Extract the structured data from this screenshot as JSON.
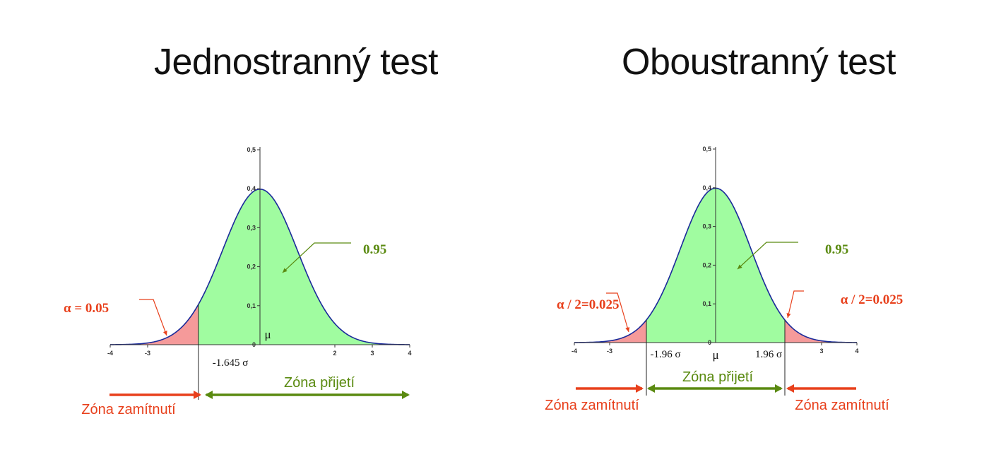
{
  "colors": {
    "rejection_fill": "#f59a9a",
    "acceptance_fill": "#a0fca0",
    "curve": "#1a2a9a",
    "rejection_text": "#e8401c",
    "acceptance_text": "#5a8a10",
    "axis": "#333333"
  },
  "chart_data": [
    {
      "type": "area",
      "title": "Jednostranný test",
      "distribution": "standard normal density",
      "xlim": [
        -4,
        4
      ],
      "ylim": [
        0,
        0.5
      ],
      "x_ticks": [
        -4,
        -3,
        2,
        3,
        4
      ],
      "y_ticks": [
        0,
        0.1,
        0.2,
        0.3,
        0.4,
        0.5
      ],
      "y_tick_labels": [
        "0",
        "0,1",
        "0,2",
        "0,3",
        "0,4",
        "0,5"
      ],
      "critical_values": [
        -1.645
      ],
      "regions": [
        {
          "from": -4,
          "to": -1.645,
          "kind": "rejection"
        },
        {
          "from": -1.645,
          "to": 4,
          "kind": "acceptance"
        }
      ],
      "labels": {
        "mu": "μ",
        "critical_left": "-1.645 σ",
        "area_acceptance": "0.95",
        "area_rejection_left": "α = 0.05",
        "zone_accept": "Zóna přijetí",
        "zone_reject_left": "Zóna zamítnutí"
      }
    },
    {
      "type": "area",
      "title": "Oboustranný test",
      "distribution": "standard normal density",
      "xlim": [
        -4,
        4
      ],
      "ylim": [
        0,
        0.5
      ],
      "x_ticks": [
        -4,
        -3,
        3,
        4
      ],
      "y_ticks": [
        0,
        0.1,
        0.2,
        0.3,
        0.4,
        0.5
      ],
      "y_tick_labels": [
        "0",
        "0,1",
        "0,2",
        "0,3",
        "0,4",
        "0,5"
      ],
      "critical_values": [
        -1.96,
        1.96
      ],
      "regions": [
        {
          "from": -4,
          "to": -1.96,
          "kind": "rejection"
        },
        {
          "from": -1.96,
          "to": 1.96,
          "kind": "acceptance"
        },
        {
          "from": 1.96,
          "to": 4,
          "kind": "rejection"
        }
      ],
      "labels": {
        "mu": "μ",
        "critical_left": "-1.96 σ",
        "critical_right": "1.96 σ",
        "area_acceptance": "0.95",
        "area_rejection_left": "α / 2=0.025",
        "area_rejection_right": "α / 2=0.025",
        "zone_accept": "Zóna přijetí",
        "zone_reject_left": "Zóna zamítnutí",
        "zone_reject_right": "Zóna zamítnutí"
      }
    }
  ]
}
